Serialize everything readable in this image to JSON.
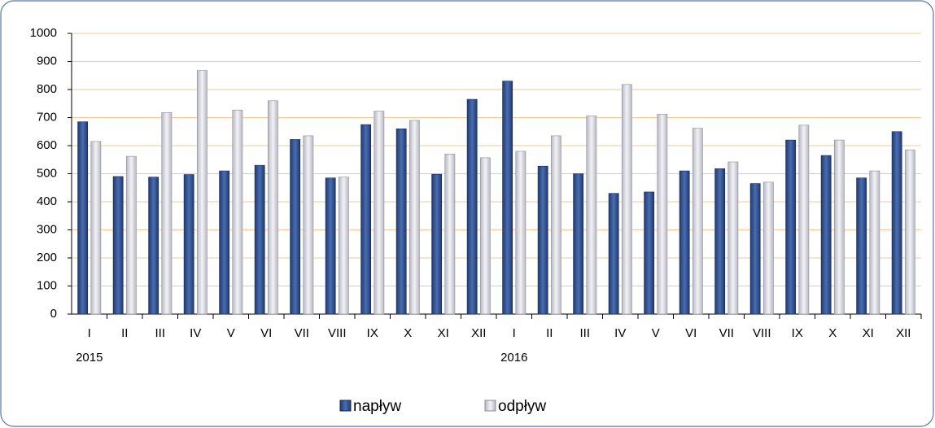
{
  "chart_data": {
    "type": "bar",
    "categories": [
      "I",
      "II",
      "III",
      "IV",
      "V",
      "VI",
      "VII",
      "VIII",
      "IX",
      "X",
      "XI",
      "XII",
      "I",
      "II",
      "III",
      "IV",
      "V",
      "VI",
      "VII",
      "VIII",
      "IX",
      "X",
      "XI",
      "XII"
    ],
    "category_years": [
      "2015",
      null,
      null,
      null,
      null,
      null,
      null,
      null,
      null,
      null,
      null,
      null,
      "2016",
      null,
      null,
      null,
      null,
      null,
      null,
      null,
      null,
      null,
      null,
      null
    ],
    "series": [
      {
        "name": "napływ",
        "color": "#2f4f8f",
        "values": [
          685,
          490,
          488,
          497,
          510,
          530,
          622,
          485,
          675,
          660,
          498,
          765,
          830,
          527,
          500,
          430,
          435,
          510,
          518,
          465,
          620,
          565,
          485,
          650
        ]
      },
      {
        "name": "odpływ",
        "color": "#d4d4dc",
        "values": [
          615,
          562,
          718,
          868,
          727,
          760,
          635,
          488,
          723,
          690,
          570,
          557,
          580,
          635,
          706,
          818,
          712,
          662,
          542,
          470,
          673,
          620,
          510,
          585
        ]
      }
    ],
    "ylim": [
      0,
      1000
    ],
    "yticks": [
      0,
      100,
      200,
      300,
      400,
      500,
      600,
      700,
      800,
      900,
      1000
    ],
    "grid": true
  }
}
